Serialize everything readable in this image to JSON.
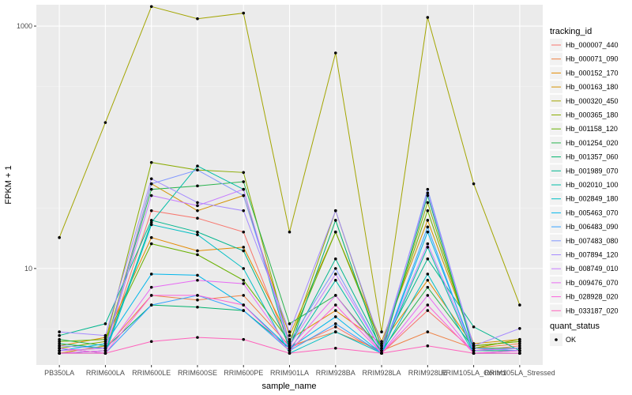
{
  "chart_data": {
    "type": "line",
    "xlabel": "sample_name",
    "ylabel": "FPKM + 1",
    "y_scale": "log10",
    "ylim": [
      1.6,
      1500
    ],
    "y_ticks": [
      10,
      1000
    ],
    "categories": [
      "PB350LA",
      "RRIM600LA",
      "RRIM600LE",
      "RRIM600SE",
      "RRIM600PE",
      "RRIM901LA",
      "RRIM928BA",
      "RRIM928LA",
      "RRIM928LE",
      "RRIM105LA_Control",
      "RRIM105LA_Stressed"
    ],
    "grid": true,
    "legend_title": "tracking_id",
    "legend_position": "right",
    "shape_legend_title": "quant_status",
    "shape_legend_items": [
      "OK"
    ],
    "series": [
      {
        "name": "Hb_000007_440",
        "color": "#F8766D",
        "values": [
          2.0,
          2.1,
          30.0,
          26.0,
          20.0,
          2.2,
          3.3,
          2.0,
          4.5,
          2.1,
          2.3
        ]
      },
      {
        "name": "Hb_000071_090",
        "color": "#EE8043",
        "values": [
          2.1,
          2.2,
          6.0,
          5.5,
          6.0,
          2.3,
          3.0,
          2.1,
          3.0,
          2.2,
          2.4
        ]
      },
      {
        "name": "Hb_000152_170",
        "color": "#E38900",
        "values": [
          2.3,
          2.7,
          18.0,
          14.0,
          15.0,
          2.6,
          4.5,
          2.4,
          8.0,
          2.3,
          2.5
        ]
      },
      {
        "name": "Hb_000163_180",
        "color": "#D39200",
        "values": [
          2.0,
          2.3,
          50.0,
          30.0,
          40.0,
          2.8,
          20.0,
          2.5,
          25.0,
          2.4,
          2.6
        ]
      },
      {
        "name": "Hb_000320_450",
        "color": "#A3A500",
        "values": [
          18.0,
          160.0,
          1450.0,
          1150.0,
          1280.0,
          20.0,
          600.0,
          3.0,
          1180.0,
          50.0,
          5.0
        ]
      },
      {
        "name": "Hb_000365_180",
        "color": "#8AAB00",
        "values": [
          2.2,
          2.5,
          75.0,
          65.0,
          62.0,
          2.4,
          30.0,
          2.2,
          35.0,
          2.2,
          2.6
        ]
      },
      {
        "name": "Hb_001158_120",
        "color": "#68B100",
        "values": [
          2.5,
          2.6,
          16.0,
          13.0,
          8.0,
          2.5,
          20.0,
          2.3,
          30.0,
          2.3,
          2.5
        ]
      },
      {
        "name": "Hb_001254_020",
        "color": "#2AB34E",
        "values": [
          2.6,
          2.3,
          45.0,
          48.0,
          52.0,
          3.5,
          6.0,
          2.1,
          7.0,
          2.2,
          2.2
        ]
      },
      {
        "name": "Hb_001357_060",
        "color": "#00B36D",
        "values": [
          2.4,
          2.2,
          5.0,
          4.8,
          4.5,
          2.2,
          25.0,
          2.0,
          40.0,
          2.1,
          2.1
        ]
      },
      {
        "name": "Hb_001989_070",
        "color": "#00B68E",
        "values": [
          2.8,
          3.5,
          25.0,
          20.0,
          14.0,
          2.3,
          12.0,
          2.2,
          12.0,
          3.3,
          2.1
        ]
      },
      {
        "name": "Hb_002010_100",
        "color": "#00BCA6",
        "values": [
          2.0,
          2.1,
          24.0,
          70.0,
          45.0,
          2.1,
          8.0,
          2.0,
          15.0,
          2.0,
          2.0
        ]
      },
      {
        "name": "Hb_002849_180",
        "color": "#00BFC4",
        "values": [
          2.2,
          2.0,
          23.0,
          19.0,
          10.0,
          2.0,
          3.0,
          2.0,
          9.0,
          2.0,
          2.0
        ]
      },
      {
        "name": "Hb_005463_070",
        "color": "#00B6EB",
        "values": [
          2.1,
          2.4,
          9.0,
          8.8,
          5.0,
          2.2,
          4.0,
          2.0,
          20.0,
          2.1,
          2.2
        ]
      },
      {
        "name": "Hb_006483_090",
        "color": "#35A2FF",
        "values": [
          2.0,
          2.0,
          5.0,
          6.0,
          4.5,
          2.1,
          3.5,
          2.0,
          22.0,
          2.0,
          2.1
        ]
      },
      {
        "name": "Hb_007483_080",
        "color": "#7F96FF",
        "values": [
          2.3,
          2.2,
          50.0,
          65.0,
          40.0,
          2.5,
          10.0,
          2.1,
          45.0,
          2.2,
          2.1
        ]
      },
      {
        "name": "Hb_007894_120",
        "color": "#A58AFF",
        "values": [
          3.0,
          2.8,
          55.0,
          35.0,
          30.0,
          3.0,
          30.0,
          2.3,
          42.0,
          2.3,
          3.2
        ]
      },
      {
        "name": "Hb_008749_010",
        "color": "#C77CFF",
        "values": [
          2.1,
          2.2,
          40.0,
          33.0,
          45.0,
          2.3,
          9.0,
          2.1,
          16.0,
          2.1,
          2.2
        ]
      },
      {
        "name": "Hb_009476_070",
        "color": "#E76BF3",
        "values": [
          2.0,
          2.1,
          7.0,
          8.0,
          7.5,
          2.2,
          6.0,
          2.0,
          6.0,
          2.0,
          2.0
        ]
      },
      {
        "name": "Hb_028928_020",
        "color": "#FA62DB",
        "values": [
          2.2,
          2.0,
          6.0,
          6.0,
          5.0,
          2.1,
          5.0,
          2.0,
          5.0,
          2.0,
          2.1
        ]
      },
      {
        "name": "Hb_033187_020",
        "color": "#FF62BC",
        "values": [
          2.0,
          2.0,
          2.5,
          2.7,
          2.6,
          2.0,
          2.2,
          2.0,
          2.3,
          2.0,
          2.0
        ]
      }
    ]
  }
}
